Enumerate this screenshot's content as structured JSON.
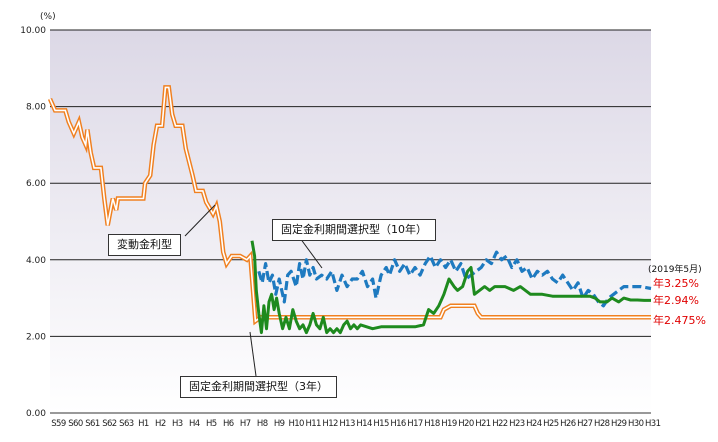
{
  "chart_data": {
    "type": "line",
    "unit_label": "(%)",
    "ylim": [
      0,
      10
    ],
    "y_ticks": [
      "0.00",
      "2.00",
      "4.00",
      "6.00",
      "8.00",
      "10.00"
    ],
    "x_ticks": [
      "S59",
      "S60",
      "S61",
      "S62",
      "S63",
      "H1",
      "H2",
      "H3",
      "H4",
      "H5",
      "H6",
      "H7",
      "H8",
      "H9",
      "H10",
      "H11",
      "H12",
      "H13",
      "H14",
      "H15",
      "H16",
      "H17",
      "H18",
      "H19",
      "H20",
      "H21",
      "H22",
      "H23",
      "H24",
      "H25",
      "H26",
      "H27",
      "H28",
      "H29",
      "H30",
      "H31"
    ],
    "x_range": [
      1984,
      2019.4
    ],
    "grid": true,
    "series": [
      {
        "name": "変動金利型",
        "style": "double-orange",
        "color": "#f08020",
        "points": [
          [
            1984,
            8.2
          ],
          [
            1984.3,
            7.9
          ],
          [
            1984.9,
            7.9
          ],
          [
            1985.1,
            7.6
          ],
          [
            1985.4,
            7.3
          ],
          [
            1985.7,
            7.6
          ],
          [
            1985.9,
            7.2
          ],
          [
            1986.1,
            7.0
          ],
          [
            1986.2,
            7.4
          ],
          [
            1986.4,
            6.8
          ],
          [
            1986.6,
            6.4
          ],
          [
            1987.0,
            6.4
          ],
          [
            1987.2,
            5.6
          ],
          [
            1987.4,
            4.9
          ],
          [
            1987.7,
            5.6
          ],
          [
            1987.9,
            5.3
          ],
          [
            1988.0,
            5.6
          ],
          [
            1989.5,
            5.6
          ],
          [
            1989.6,
            6.0
          ],
          [
            1989.9,
            6.2
          ],
          [
            1990.1,
            7.0
          ],
          [
            1990.3,
            7.5
          ],
          [
            1990.6,
            7.5
          ],
          [
            1990.8,
            8.5
          ],
          [
            1991.0,
            8.5
          ],
          [
            1991.2,
            7.8
          ],
          [
            1991.4,
            7.5
          ],
          [
            1991.8,
            7.5
          ],
          [
            1992.0,
            6.9
          ],
          [
            1992.4,
            6.2
          ],
          [
            1992.6,
            5.8
          ],
          [
            1993.0,
            5.8
          ],
          [
            1993.2,
            5.5
          ],
          [
            1993.6,
            5.2
          ],
          [
            1993.8,
            5.4
          ],
          [
            1994.0,
            5.0
          ],
          [
            1994.2,
            4.2
          ],
          [
            1994.4,
            3.9
          ],
          [
            1994.7,
            4.1
          ],
          [
            1995.2,
            4.1
          ],
          [
            1995.6,
            4.0
          ],
          [
            1995.8,
            4.1
          ],
          [
            1996.1,
            2.4
          ],
          [
            1996.4,
            2.5
          ],
          [
            2007.0,
            2.5
          ],
          [
            2007.2,
            2.7
          ],
          [
            2007.6,
            2.8
          ],
          [
            2009.0,
            2.8
          ],
          [
            2009.2,
            2.6
          ],
          [
            2009.4,
            2.5
          ],
          [
            2019.4,
            2.5
          ]
        ]
      },
      {
        "name": "固定金利期間選択型（10年）",
        "style": "dashed-blue",
        "color": "#1e7ac0",
        "points": [
          [
            1996.3,
            3.7
          ],
          [
            1996.5,
            3.4
          ],
          [
            1996.7,
            3.9
          ],
          [
            1996.9,
            3.4
          ],
          [
            1997.1,
            3.6
          ],
          [
            1997.3,
            3.1
          ],
          [
            1997.5,
            3.5
          ],
          [
            1997.8,
            2.9
          ],
          [
            1998.0,
            3.6
          ],
          [
            1998.2,
            3.7
          ],
          [
            1998.5,
            3.3
          ],
          [
            1998.7,
            3.9
          ],
          [
            1998.9,
            3.5
          ],
          [
            1999.1,
            4.0
          ],
          [
            1999.3,
            3.6
          ],
          [
            1999.5,
            3.8
          ],
          [
            1999.7,
            3.5
          ],
          [
            2000.0,
            3.6
          ],
          [
            2000.3,
            3.5
          ],
          [
            2000.6,
            3.7
          ],
          [
            2000.9,
            3.2
          ],
          [
            2001.2,
            3.6
          ],
          [
            2001.5,
            3.3
          ],
          [
            2001.8,
            3.5
          ],
          [
            2002.1,
            3.5
          ],
          [
            2002.4,
            3.7
          ],
          [
            2002.7,
            3.3
          ],
          [
            2003.0,
            3.5
          ],
          [
            2003.2,
            3.0
          ],
          [
            2003.5,
            3.6
          ],
          [
            2003.8,
            3.8
          ],
          [
            2004.0,
            3.6
          ],
          [
            2004.3,
            4.0
          ],
          [
            2004.6,
            3.7
          ],
          [
            2004.9,
            3.9
          ],
          [
            2005.2,
            3.6
          ],
          [
            2005.5,
            3.8
          ],
          [
            2005.8,
            3.6
          ],
          [
            2006.1,
            3.9
          ],
          [
            2006.4,
            4.1
          ],
          [
            2006.7,
            3.8
          ],
          [
            2007.0,
            4.0
          ],
          [
            2007.3,
            3.8
          ],
          [
            2007.6,
            4.0
          ],
          [
            2007.9,
            3.7
          ],
          [
            2008.2,
            3.9
          ],
          [
            2008.5,
            3.5
          ],
          [
            2008.8,
            3.6
          ],
          [
            2009.1,
            3.7
          ],
          [
            2009.4,
            3.8
          ],
          [
            2009.7,
            4.0
          ],
          [
            2010.0,
            3.9
          ],
          [
            2010.3,
            4.2
          ],
          [
            2010.6,
            4.0
          ],
          [
            2010.9,
            4.1
          ],
          [
            2011.2,
            3.8
          ],
          [
            2011.5,
            4.0
          ],
          [
            2011.8,
            3.7
          ],
          [
            2012.1,
            3.8
          ],
          [
            2012.4,
            3.5
          ],
          [
            2012.7,
            3.7
          ],
          [
            2013.0,
            3.6
          ],
          [
            2013.3,
            3.7
          ],
          [
            2013.6,
            3.5
          ],
          [
            2013.9,
            3.4
          ],
          [
            2014.2,
            3.6
          ],
          [
            2014.5,
            3.4
          ],
          [
            2014.8,
            3.2
          ],
          [
            2015.1,
            3.4
          ],
          [
            2015.4,
            3.0
          ],
          [
            2015.7,
            3.2
          ],
          [
            2016.0,
            3.1
          ],
          [
            2016.3,
            2.9
          ],
          [
            2016.6,
            2.8
          ],
          [
            2016.9,
            3.0
          ],
          [
            2017.2,
            3.1
          ],
          [
            2017.5,
            3.2
          ],
          [
            2017.8,
            3.3
          ],
          [
            2018.1,
            3.3
          ],
          [
            2018.5,
            3.3
          ],
          [
            2018.8,
            3.3
          ],
          [
            2019.4,
            3.25
          ]
        ]
      },
      {
        "name": "固定金利期間選択型（3年）",
        "style": "solid-green",
        "color": "#1e8a1e",
        "points": [
          [
            1995.9,
            4.5
          ],
          [
            1996.05,
            4.1
          ],
          [
            1996.15,
            3.2
          ],
          [
            1996.3,
            2.6
          ],
          [
            1996.45,
            2.1
          ],
          [
            1996.6,
            2.8
          ],
          [
            1996.75,
            2.2
          ],
          [
            1996.9,
            2.9
          ],
          [
            1997.05,
            3.1
          ],
          [
            1997.2,
            2.7
          ],
          [
            1997.35,
            3.0
          ],
          [
            1997.5,
            2.6
          ],
          [
            1997.7,
            2.2
          ],
          [
            1997.9,
            2.5
          ],
          [
            1998.1,
            2.2
          ],
          [
            1998.3,
            2.7
          ],
          [
            1998.5,
            2.4
          ],
          [
            1998.7,
            2.2
          ],
          [
            1998.9,
            2.3
          ],
          [
            1999.1,
            2.1
          ],
          [
            1999.3,
            2.3
          ],
          [
            1999.5,
            2.6
          ],
          [
            1999.7,
            2.3
          ],
          [
            1999.9,
            2.2
          ],
          [
            2000.1,
            2.5
          ],
          [
            2000.3,
            2.1
          ],
          [
            2000.5,
            2.2
          ],
          [
            2000.7,
            2.1
          ],
          [
            2000.9,
            2.2
          ],
          [
            2001.1,
            2.1
          ],
          [
            2001.3,
            2.3
          ],
          [
            2001.5,
            2.4
          ],
          [
            2001.7,
            2.2
          ],
          [
            2001.9,
            2.3
          ],
          [
            2002.1,
            2.2
          ],
          [
            2002.3,
            2.3
          ],
          [
            2003.0,
            2.2
          ],
          [
            2003.5,
            2.25
          ],
          [
            2004.5,
            2.25
          ],
          [
            2005.5,
            2.25
          ],
          [
            2006.0,
            2.3
          ],
          [
            2006.3,
            2.7
          ],
          [
            2006.6,
            2.6
          ],
          [
            2006.9,
            2.8
          ],
          [
            2007.2,
            3.1
          ],
          [
            2007.5,
            3.5
          ],
          [
            2007.8,
            3.3
          ],
          [
            2008.0,
            3.2
          ],
          [
            2008.3,
            3.3
          ],
          [
            2008.6,
            3.7
          ],
          [
            2008.8,
            3.8
          ],
          [
            2009.0,
            3.1
          ],
          [
            2009.3,
            3.2
          ],
          [
            2009.6,
            3.3
          ],
          [
            2009.9,
            3.2
          ],
          [
            2010.2,
            3.3
          ],
          [
            2010.8,
            3.3
          ],
          [
            2011.3,
            3.2
          ],
          [
            2011.7,
            3.3
          ],
          [
            2012.0,
            3.2
          ],
          [
            2012.3,
            3.1
          ],
          [
            2013.0,
            3.1
          ],
          [
            2013.6,
            3.05
          ],
          [
            2014.2,
            3.05
          ],
          [
            2014.8,
            3.05
          ],
          [
            2015.3,
            3.05
          ],
          [
            2015.8,
            3.05
          ],
          [
            2016.1,
            3.0
          ],
          [
            2016.4,
            2.9
          ],
          [
            2016.8,
            2.9
          ],
          [
            2017.1,
            3.0
          ],
          [
            2017.5,
            2.9
          ],
          [
            2017.8,
            3.0
          ],
          [
            2018.2,
            2.95
          ],
          [
            2018.6,
            2.95
          ],
          [
            2019.0,
            2.94
          ],
          [
            2019.4,
            2.94
          ]
        ]
      }
    ],
    "callouts": {
      "hendo": "変動金利型",
      "fixed10": "固定金利期間選択型（10年）",
      "fixed3": "固定金利期間選択型（3年）"
    },
    "end_note": "(2019年5月)",
    "end_labels": {
      "fixed10": "年3.25%",
      "fixed3": "年2.94%",
      "hendo": "年2.475%"
    }
  }
}
